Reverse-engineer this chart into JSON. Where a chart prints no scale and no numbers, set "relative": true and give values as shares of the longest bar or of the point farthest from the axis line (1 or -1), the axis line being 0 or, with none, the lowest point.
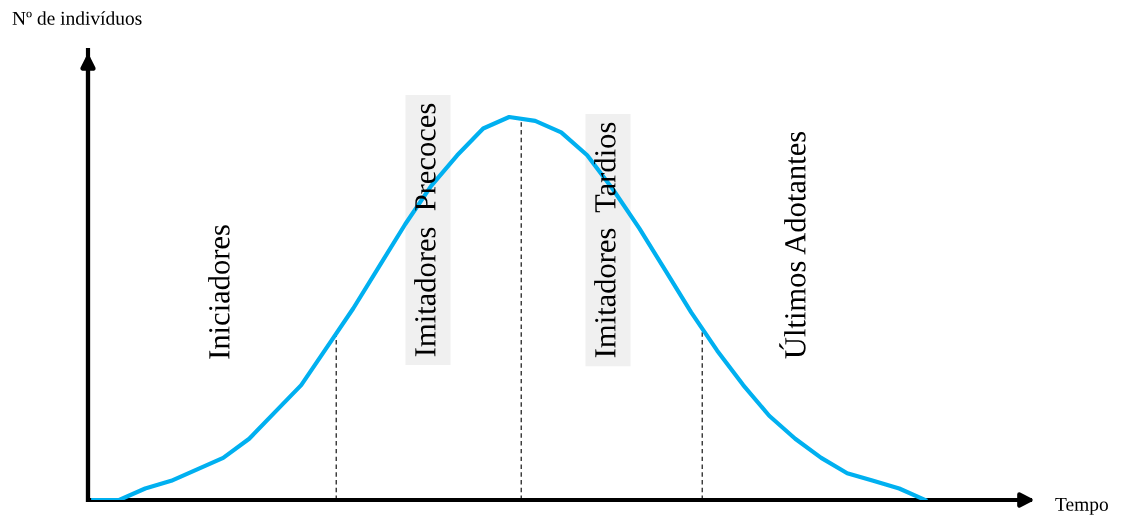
{
  "chart_data": {
    "type": "line",
    "relative": true,
    "xlabel": "Tempo",
    "ylabel": "Nº de indivíduos",
    "categories": [
      null,
      null,
      null,
      null,
      null,
      null,
      null,
      null,
      null,
      null,
      null,
      null,
      null,
      null,
      null,
      null,
      null,
      null,
      null,
      null,
      null,
      null,
      null,
      null,
      null,
      null,
      null,
      null,
      null,
      null,
      null,
      null,
      null,
      null,
      null,
      null,
      null
    ],
    "series": [
      {
        "color": "#00b0f0",
        "values": [
          0,
          0,
          0.03,
          0.05,
          0.08,
          0.11,
          0.16,
          0.23,
          0.3,
          0.4,
          0.5,
          0.61,
          0.72,
          0.82,
          0.9,
          0.97,
          1.0,
          0.99,
          0.96,
          0.9,
          0.81,
          0.71,
          0.6,
          0.49,
          0.39,
          0.3,
          0.22,
          0.16,
          0.11,
          0.07,
          0.05,
          0.03,
          0,
          null,
          null,
          null,
          null
        ]
      }
    ],
    "annotations": [
      "Iniciadores",
      "Imitadores  Precoces",
      "Imitadores  Tardios",
      "Últimos Adotantes"
    ],
    "tick_labels": false,
    "marker": "none",
    "line_style": "solid"
  }
}
